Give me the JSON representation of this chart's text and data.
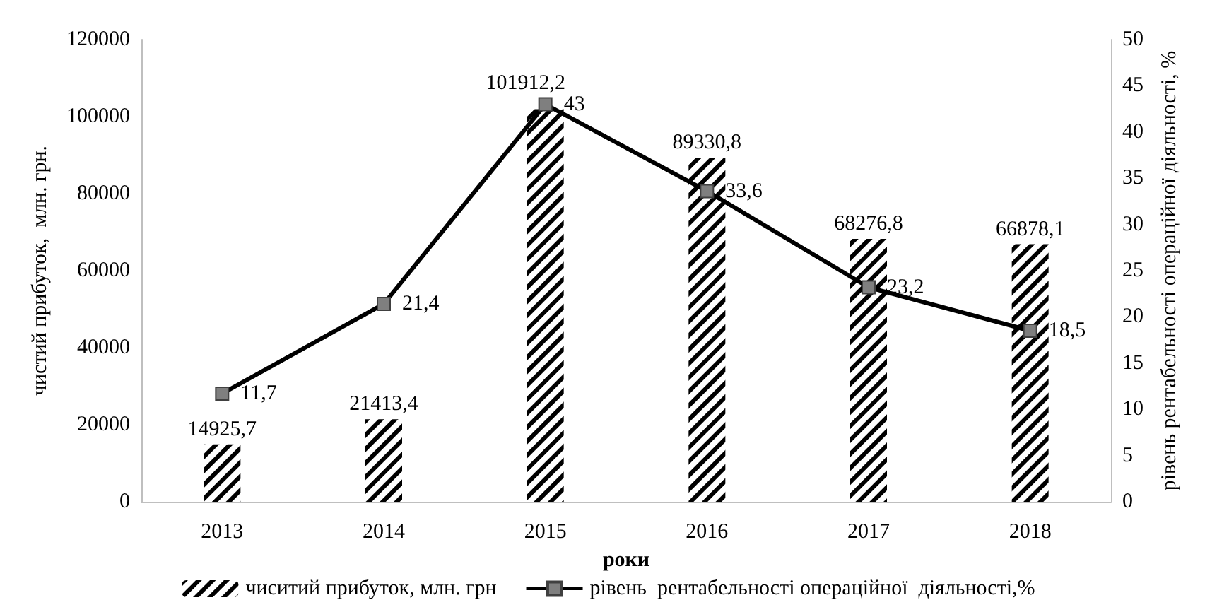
{
  "chart_data": {
    "type": "bar",
    "xlabel": "роки",
    "ylabel": "чистий прибуток,  млн. грн.",
    "y2label": "рівень рентабельності операційної діяльності, %",
    "categories": [
      "2013",
      "2014",
      "2015",
      "2016",
      "2017",
      "2018"
    ],
    "series": [
      {
        "name": "чиситий прибуток, млн. грн",
        "color": "#000000",
        "values": [
          14925.7,
          21413.4,
          101912.2,
          89330.8,
          68276.8,
          66878.1
        ],
        "value_labels": [
          "14925,7",
          "21413,4",
          "101912,2",
          "89330,8",
          "68276,8",
          "66878,1"
        ]
      },
      {
        "name": "рівень  рентабельності операційної  діяльності,%",
        "type": "line",
        "axis": "y2",
        "color": "#000000",
        "marker": "square",
        "values": [
          11.7,
          21.4,
          43,
          33.6,
          23.2,
          18.5
        ],
        "value_labels": [
          "11,7",
          "21,4",
          "43",
          "33,6",
          "23,2",
          "18,5"
        ]
      }
    ],
    "ylim": [
      0,
      120000
    ],
    "yticks": [
      0,
      20000,
      40000,
      60000,
      80000,
      100000,
      120000
    ],
    "y2lim": [
      0,
      50
    ],
    "y2ticks": [
      0,
      5,
      10,
      15,
      20,
      25,
      30,
      35,
      40,
      45,
      50
    ],
    "grid": false,
    "legend": "bottom"
  }
}
